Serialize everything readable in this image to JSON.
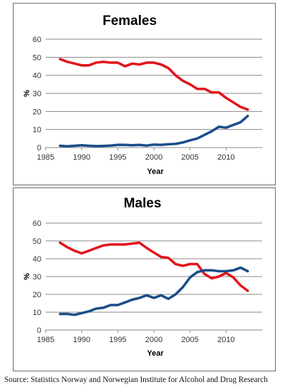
{
  "source": "Source: Statistics Norway and Norwegian Institute for Alcohol and Drug Research",
  "chart_data": [
    {
      "type": "line",
      "title": "Females",
      "xlabel": "Year",
      "ylabel": "%",
      "xlim": [
        1985,
        2015
      ],
      "ylim": [
        0,
        60
      ],
      "xticks": [
        1985,
        1990,
        1995,
        2000,
        2005,
        2010
      ],
      "yticks": [
        0,
        10,
        20,
        30,
        40,
        50,
        60
      ],
      "grid": "horizontal",
      "series": [
        {
          "color": "#e3141b",
          "x": [
            1987,
            1988,
            1989,
            1990,
            1991,
            1992,
            1993,
            1994,
            1995,
            1996,
            1997,
            1998,
            1999,
            2000,
            2001,
            2002,
            2003,
            2004,
            2005,
            2006,
            2007,
            2008,
            2009,
            2010,
            2011,
            2012,
            2013
          ],
          "y": [
            49,
            47.5,
            46.5,
            45.5,
            45.5,
            47,
            47.5,
            47,
            47,
            45,
            46.5,
            46,
            47,
            47,
            46,
            44,
            40,
            37,
            35,
            32.5,
            32.5,
            30.5,
            30.5,
            27.5,
            25,
            22.5,
            21
          ]
        },
        {
          "color": "#1a4d8a",
          "x": [
            1987,
            1988,
            1989,
            1990,
            1991,
            1992,
            1993,
            1994,
            1995,
            1996,
            1997,
            1998,
            1999,
            2000,
            2001,
            2002,
            2003,
            2004,
            2005,
            2006,
            2007,
            2008,
            2009,
            2010,
            2011,
            2012,
            2013
          ],
          "y": [
            1,
            0.7,
            1,
            1.3,
            1,
            0.8,
            0.9,
            1.1,
            1.5,
            1.5,
            1.3,
            1.5,
            1.1,
            1.6,
            1.5,
            1.8,
            2,
            2.8,
            4,
            5,
            7,
            9,
            11.5,
            11,
            12.5,
            14,
            17.5
          ]
        }
      ]
    },
    {
      "type": "line",
      "title": "Males",
      "xlabel": "Year",
      "ylabel": "%",
      "xlim": [
        1985,
        2015
      ],
      "ylim": [
        0,
        60
      ],
      "xticks": [
        1985,
        1990,
        1995,
        2000,
        2005,
        2010
      ],
      "yticks": [
        0,
        10,
        20,
        30,
        40,
        50,
        60
      ],
      "grid": "horizontal",
      "series": [
        {
          "color": "#e3141b",
          "x": [
            1987,
            1988,
            1989,
            1990,
            1991,
            1992,
            1993,
            1994,
            1995,
            1996,
            1997,
            1998,
            1999,
            2000,
            2001,
            2002,
            2003,
            2004,
            2005,
            2006,
            2007,
            2008,
            2009,
            2010,
            2011,
            2012,
            2013
          ],
          "y": [
            49,
            46.5,
            44.5,
            43,
            44.5,
            46,
            47.5,
            48,
            48,
            48,
            48.5,
            49,
            46,
            43.5,
            41,
            40.5,
            37,
            36,
            37,
            37,
            31.5,
            29,
            30,
            32,
            29.5,
            25,
            22
          ]
        },
        {
          "color": "#1a4d8a",
          "x": [
            1987,
            1988,
            1989,
            1990,
            1991,
            1992,
            1993,
            1994,
            1995,
            1996,
            1997,
            1998,
            1999,
            2000,
            2001,
            2002,
            2003,
            2004,
            2005,
            2006,
            2007,
            2008,
            2009,
            2010,
            2011,
            2012,
            2013
          ],
          "y": [
            9,
            9,
            8.5,
            9.5,
            10.5,
            12,
            12.5,
            14,
            14,
            15.5,
            17,
            18,
            19.5,
            18,
            19.5,
            17.5,
            20,
            24,
            29.5,
            32.5,
            33.5,
            33.5,
            33,
            33,
            33.5,
            35,
            33
          ]
        }
      ]
    }
  ]
}
